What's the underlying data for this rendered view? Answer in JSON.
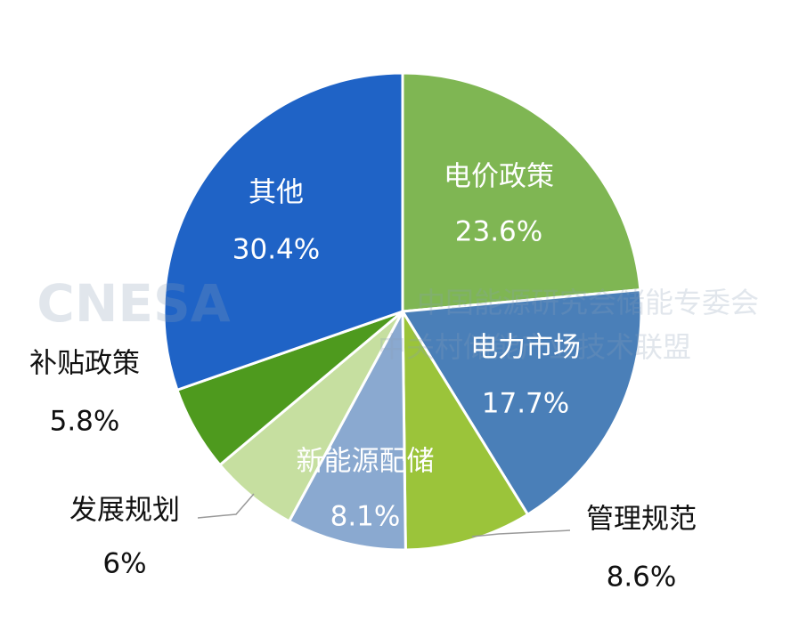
{
  "chart_data": {
    "type": "pie",
    "categories": [
      "电价政策",
      "电力市场",
      "管理规范",
      "新能源配储",
      "发展规划",
      "补贴政策",
      "其他"
    ],
    "values": [
      23.6,
      17.7,
      8.6,
      8.1,
      6,
      5.8,
      30.4
    ],
    "value_labels": [
      "23.6%",
      "17.7%",
      "8.6%",
      "8.1%",
      "6%",
      "5.8%",
      "30.4%"
    ],
    "colors": [
      "#7fb653",
      "#4a7fb8",
      "#9bc43a",
      "#8aa9d0",
      "#c6dfa0",
      "#4e9a1e",
      "#1f63c6"
    ]
  },
  "watermark": {
    "logo": "CNESA",
    "line1": "中国能源研究会储能专委会",
    "line2": "中关村储能产业技术联盟"
  }
}
